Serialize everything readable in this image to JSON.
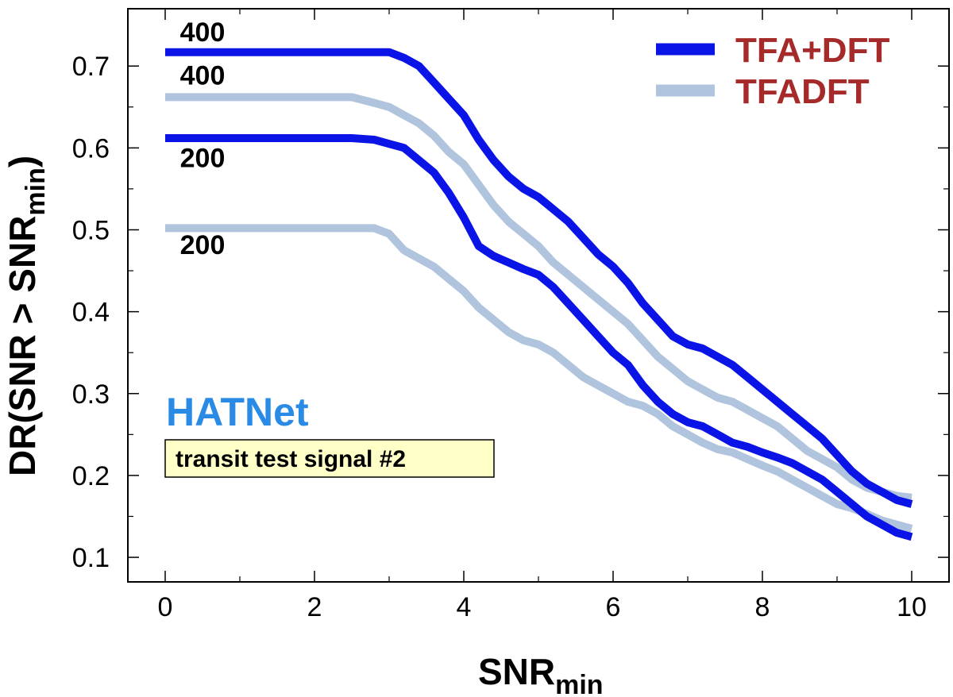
{
  "chart_data": {
    "type": "line",
    "xlabel": "SNR",
    "xlabel_sub": "min",
    "ylabel_parts": [
      "DR(SNR > SNR",
      "min",
      ")"
    ],
    "xlim": [
      -0.5,
      10.5
    ],
    "ylim": [
      0.07,
      0.77
    ],
    "xticks": [
      0,
      2,
      4,
      6,
      8,
      10
    ],
    "yticks": [
      0.1,
      0.2,
      0.3,
      0.4,
      0.5,
      0.6,
      0.7
    ],
    "xtick_labels": [
      "0",
      "2",
      "4",
      "6",
      "8",
      "10"
    ],
    "ytick_labels": [
      "0.1",
      "0.2",
      "0.3",
      "0.4",
      "0.5",
      "0.6",
      "0.7"
    ],
    "series": [
      {
        "name": "TFA+DFT",
        "group": "400",
        "color": "#0a14e6",
        "x": [
          0,
          0.5,
          1,
          1.5,
          2,
          2.5,
          2.8,
          3.0,
          3.2,
          3.4,
          3.6,
          3.8,
          4.0,
          4.2,
          4.4,
          4.6,
          4.8,
          5.0,
          5.2,
          5.4,
          5.6,
          5.8,
          6.0,
          6.2,
          6.4,
          6.6,
          6.8,
          7.0,
          7.2,
          7.4,
          7.6,
          7.8,
          8.0,
          8.2,
          8.4,
          8.6,
          8.8,
          9.0,
          9.2,
          9.4,
          9.6,
          9.8,
          10.0
        ],
        "y": [
          0.717,
          0.717,
          0.717,
          0.717,
          0.717,
          0.717,
          0.717,
          0.717,
          0.71,
          0.7,
          0.68,
          0.66,
          0.64,
          0.61,
          0.585,
          0.565,
          0.55,
          0.54,
          0.525,
          0.51,
          0.49,
          0.47,
          0.455,
          0.435,
          0.41,
          0.39,
          0.37,
          0.36,
          0.355,
          0.345,
          0.335,
          0.32,
          0.305,
          0.29,
          0.275,
          0.26,
          0.245,
          0.225,
          0.205,
          0.19,
          0.18,
          0.17,
          0.165
        ]
      },
      {
        "name": "TFADFT",
        "group": "400",
        "color": "#b0c4de",
        "x": [
          0,
          0.5,
          1,
          1.5,
          2,
          2.5,
          2.8,
          3.0,
          3.2,
          3.4,
          3.6,
          3.8,
          4.0,
          4.2,
          4.4,
          4.6,
          4.8,
          5.0,
          5.2,
          5.4,
          5.6,
          5.8,
          6.0,
          6.2,
          6.4,
          6.6,
          6.8,
          7.0,
          7.2,
          7.4,
          7.6,
          7.8,
          8.0,
          8.2,
          8.4,
          8.6,
          8.8,
          9.0,
          9.2,
          9.4,
          9.6,
          9.8,
          10.0
        ],
        "y": [
          0.662,
          0.662,
          0.662,
          0.662,
          0.662,
          0.662,
          0.655,
          0.65,
          0.64,
          0.63,
          0.615,
          0.595,
          0.58,
          0.555,
          0.53,
          0.51,
          0.495,
          0.48,
          0.46,
          0.445,
          0.43,
          0.415,
          0.4,
          0.385,
          0.365,
          0.345,
          0.33,
          0.315,
          0.305,
          0.295,
          0.29,
          0.28,
          0.27,
          0.26,
          0.245,
          0.23,
          0.22,
          0.21,
          0.195,
          0.185,
          0.18,
          0.175,
          0.173
        ]
      },
      {
        "name": "TFA+DFT",
        "group": "200",
        "color": "#0a14e6",
        "x": [
          0,
          0.5,
          1,
          1.5,
          2,
          2.5,
          2.8,
          3.0,
          3.2,
          3.4,
          3.6,
          3.8,
          4.0,
          4.2,
          4.4,
          4.6,
          4.8,
          5.0,
          5.2,
          5.4,
          5.6,
          5.8,
          6.0,
          6.2,
          6.4,
          6.6,
          6.8,
          7.0,
          7.2,
          7.4,
          7.6,
          7.8,
          8.0,
          8.2,
          8.4,
          8.6,
          8.8,
          9.0,
          9.2,
          9.4,
          9.6,
          9.8,
          10.0
        ],
        "y": [
          0.612,
          0.612,
          0.612,
          0.612,
          0.612,
          0.612,
          0.61,
          0.605,
          0.6,
          0.585,
          0.57,
          0.545,
          0.515,
          0.48,
          0.468,
          0.46,
          0.452,
          0.445,
          0.43,
          0.41,
          0.39,
          0.37,
          0.35,
          0.335,
          0.31,
          0.29,
          0.275,
          0.265,
          0.26,
          0.25,
          0.24,
          0.235,
          0.228,
          0.222,
          0.215,
          0.205,
          0.195,
          0.18,
          0.165,
          0.15,
          0.14,
          0.13,
          0.125
        ]
      },
      {
        "name": "TFADFT",
        "group": "200",
        "color": "#b0c4de",
        "x": [
          0,
          0.5,
          1,
          1.5,
          2,
          2.5,
          2.8,
          3.0,
          3.2,
          3.4,
          3.6,
          3.8,
          4.0,
          4.2,
          4.4,
          4.6,
          4.8,
          5.0,
          5.2,
          5.4,
          5.6,
          5.8,
          6.0,
          6.2,
          6.4,
          6.6,
          6.8,
          7.0,
          7.2,
          7.4,
          7.6,
          7.8,
          8.0,
          8.2,
          8.4,
          8.6,
          8.8,
          9.0,
          9.2,
          9.4,
          9.6,
          9.8,
          10.0
        ],
        "y": [
          0.502,
          0.502,
          0.502,
          0.502,
          0.502,
          0.502,
          0.502,
          0.495,
          0.475,
          0.465,
          0.455,
          0.44,
          0.425,
          0.405,
          0.39,
          0.375,
          0.365,
          0.36,
          0.35,
          0.335,
          0.32,
          0.31,
          0.3,
          0.29,
          0.285,
          0.275,
          0.26,
          0.25,
          0.24,
          0.232,
          0.228,
          0.22,
          0.212,
          0.205,
          0.195,
          0.185,
          0.175,
          0.165,
          0.16,
          0.153,
          0.145,
          0.14,
          0.135
        ]
      }
    ],
    "curve_labels": [
      {
        "text": "400",
        "x": 0.5,
        "y": 0.742
      },
      {
        "text": "400",
        "x": 0.5,
        "y": 0.689
      },
      {
        "text": "200",
        "x": 0.5,
        "y": 0.588
      },
      {
        "text": "200",
        "x": 0.5,
        "y": 0.482
      }
    ],
    "legend": {
      "entries": [
        {
          "label": "TFA+DFT",
          "color": "#0a14e6"
        },
        {
          "label": "TFADFT",
          "color": "#b0c4de"
        }
      ],
      "text_color": "#a52a2a",
      "position": "top-right"
    },
    "annotations": {
      "survey": "HATNet",
      "survey_color": "#2a8be6",
      "signal_box": "transit test signal #2",
      "signal_box_fill": "#ffffc8"
    }
  }
}
